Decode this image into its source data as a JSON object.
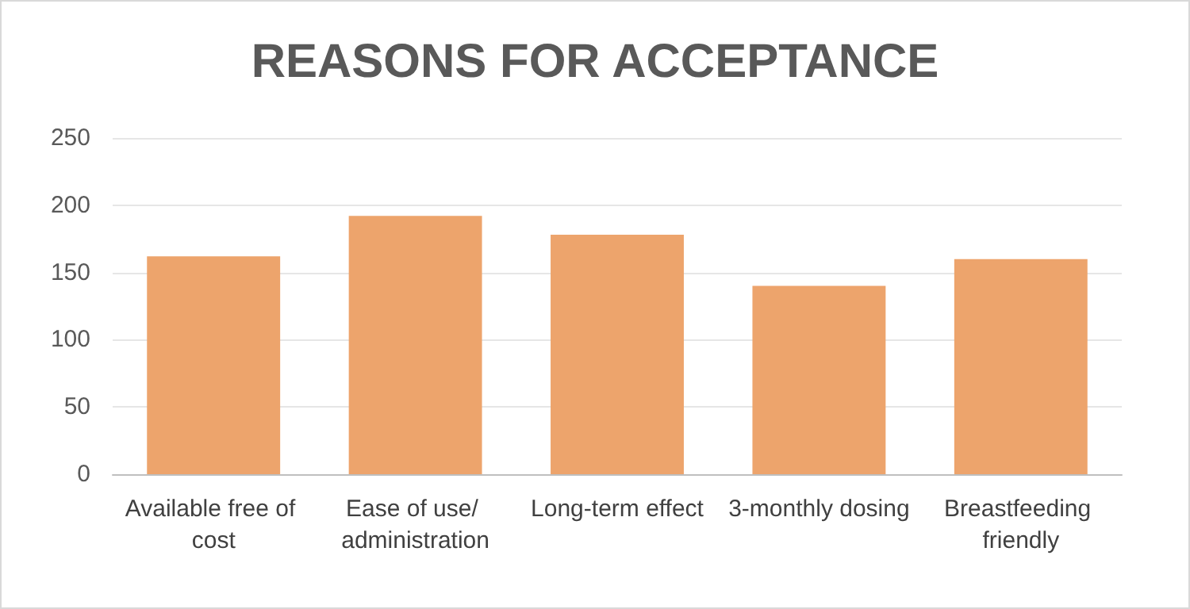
{
  "chart_data": {
    "type": "bar",
    "title": "REASONS FOR ACCEPTANCE",
    "categories": [
      "Available free of cost",
      "Ease of use/ administration",
      "Long-term effect",
      "3-monthly dosing",
      "Breastfeeding friendly"
    ],
    "values": [
      162,
      192,
      178,
      140,
      160
    ],
    "color": "#eda46c",
    "ylim": [
      0,
      250
    ],
    "yticks": [
      0,
      50,
      100,
      150,
      200,
      250
    ],
    "grid": true
  }
}
